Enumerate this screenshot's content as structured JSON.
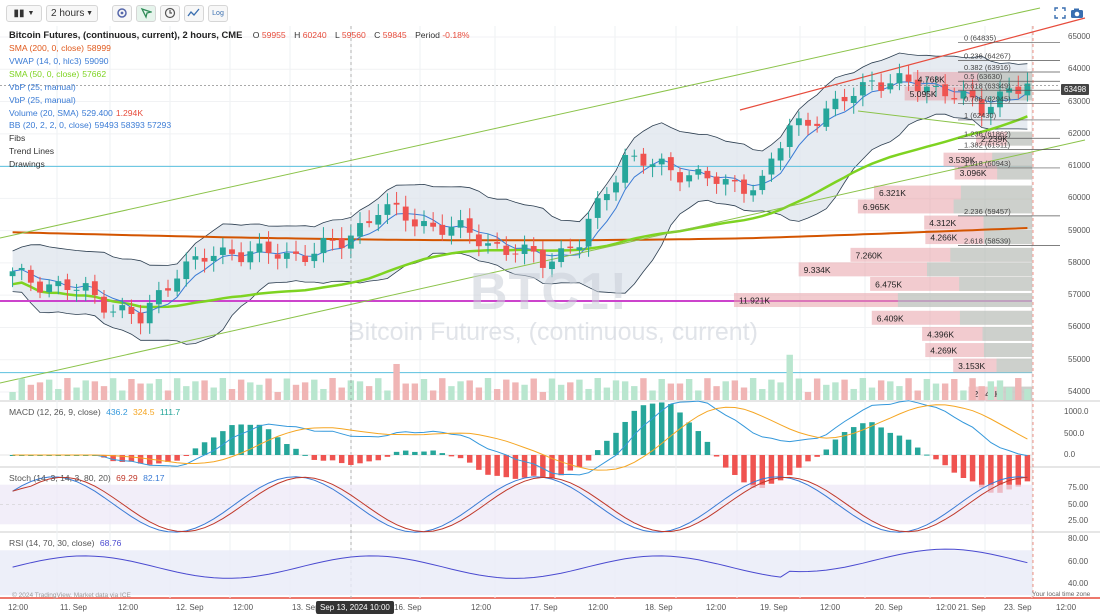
{
  "toolbar": {
    "chart_type_icon": "candles-icon",
    "interval": "2 hours",
    "settings_icon": "gear-icon",
    "icons": [
      "cursor-icon",
      "clock-icon",
      "indicators-icon",
      "log-icon"
    ],
    "log_label": "Log",
    "right_icons": [
      "fullscreen-icon",
      "camera-icon"
    ]
  },
  "legend": {
    "title": "Bitcoin Futures, (continuous, current), 2 hours, CME",
    "ohlc": {
      "o_label": "O",
      "o": "59955",
      "h_label": "H",
      "h": "60240",
      "l_label": "L",
      "l": "59560",
      "c_label": "C",
      "c": "59845",
      "period_label": "Period",
      "period": "-0.18%"
    },
    "rows": [
      {
        "name": "SMA (200, 0, close)",
        "value": "58999",
        "color": "#e0591c"
      },
      {
        "name": "VWAP (14, 0, hlc3)",
        "value": "59090",
        "color": "#3a7bd5"
      },
      {
        "name": "SMA (50, 0, close)",
        "value": "57662",
        "color": "#7ed321"
      },
      {
        "name": "VbP (25, manual)",
        "value": "",
        "color": "#3a7bd5"
      },
      {
        "name": "VbP (25, manual)",
        "value": "",
        "color": "#3a7bd5"
      },
      {
        "name": "Volume (20, SMA)",
        "value": "529.400",
        "value2": "1.294K",
        "color": "#3a7bd5",
        "value2_color": "#e74c3c"
      },
      {
        "name": "BB (20, 2, 2, 0, close)",
        "value": "59493 58393 57293",
        "color": "#3a7bd5"
      },
      {
        "name": "Fibs",
        "value": "",
        "color": "#333"
      },
      {
        "name": "Trend Lines",
        "value": "",
        "color": "#333"
      },
      {
        "name": "Drawings",
        "value": "",
        "color": "#333"
      }
    ]
  },
  "watermark": {
    "symbol": "BTC1!",
    "description": "Bitcoin Futures, (continuous, current)"
  },
  "macd_legend": {
    "name": "MACD (12, 26, 9, close)",
    "v1": "436.2",
    "v2": "324.5",
    "v3": "111.7"
  },
  "stoch_legend": {
    "name": "Stoch (14, 3, 14, 3, 80, 20)",
    "v1": "69.29",
    "v2": "82.17"
  },
  "rsi_legend": {
    "name": "RSI (14, 70, 30, close)",
    "v1": "68.76"
  },
  "price_axis": [
    "65000",
    "64000",
    "63000",
    "62000",
    "61000",
    "60000",
    "59000",
    "58000",
    "57000",
    "56000",
    "55000",
    "54000"
  ],
  "current_price": "63498",
  "macd_axis": [
    "1000.0",
    "500.0",
    "0.0"
  ],
  "stoch_axis": [
    "75.00",
    "50.00",
    "25.00"
  ],
  "rsi_axis": [
    "80.00",
    "60.00",
    "40.00"
  ],
  "time_axis": [
    "12:00",
    "11. Sep",
    "12:00",
    "12. Sep",
    "12:00",
    "13. Sep",
    "16. Sep",
    "12:00",
    "17. Sep",
    "12:00",
    "18. Sep",
    "12:00",
    "19. Sep",
    "12:00",
    "20. Sep",
    "12:00",
    "21. Sep",
    "23. Sep",
    "12:00"
  ],
  "crosshair_date": "Sep 13, 2024 10:00",
  "footer_note": "© 2024 TradingView. Market data via ICE",
  "tz_note": "Your local time zone",
  "fib_labels": [
    "0 (64835)",
    "0.236 (64267)",
    "0.382 (63916)",
    "0.5 (63630)",
    "0.618 (63349)",
    "0.786 (62945)",
    "1 (62430)",
    "1.236 (61862)",
    "1.382 (61511)",
    "1.618 (60943)",
    "2.236 (59457)",
    "2.618 (58539)"
  ],
  "vbp_labels": [
    "4.768K",
    "5.095K",
    "2.239K",
    "3.539K",
    "3.096K",
    "6.321K",
    "6.965K",
    "4.312K",
    "4.266K",
    "7.260K",
    "9.334K",
    "6.475K",
    "11.921K",
    "6.409K",
    "4.396K",
    "4.269K",
    "3.153K",
    "2.541K"
  ],
  "colors": {
    "up": "#26a69a",
    "down": "#ef5350",
    "sma200": "#d35400",
    "sma50": "#7ed321",
    "vwap": "#3a7bd5",
    "bb": "#2c3e50",
    "bbfill": "#dde4ec",
    "macd": "#3498db",
    "signal": "#f5a623",
    "stochk": "#3a7bd5",
    "stochd": "#c0392b",
    "rsi": "#4a4ad0",
    "magenta": "#cc44cc",
    "cyan": "#5bc0de"
  },
  "chart_data": {
    "type": "candlestick",
    "symbol": "BTC1!",
    "interval": "2h",
    "ylim": [
      53700,
      65700
    ],
    "x_range_labels": [
      "10 Sep 12:00",
      "23 Sep 12:00"
    ],
    "bars_approx": 112,
    "close_anchors": [
      [
        0,
        57600
      ],
      [
        8,
        57100
      ],
      [
        14,
        56200
      ],
      [
        18,
        57800
      ],
      [
        24,
        58400
      ],
      [
        30,
        58200
      ],
      [
        36,
        58600
      ],
      [
        40,
        59700
      ],
      [
        44,
        59300
      ],
      [
        50,
        58900
      ],
      [
        54,
        58400
      ],
      [
        58,
        58100
      ],
      [
        62,
        58600
      ],
      [
        65,
        60300
      ],
      [
        67,
        61300
      ],
      [
        70,
        61000
      ],
      [
        74,
        60800
      ],
      [
        78,
        60400
      ],
      [
        82,
        60500
      ],
      [
        85,
        62200
      ],
      [
        90,
        62800
      ],
      [
        94,
        63700
      ],
      [
        98,
        63500
      ],
      [
        102,
        63400
      ],
      [
        106,
        62700
      ],
      [
        109,
        63500
      ],
      [
        111,
        63400
      ]
    ],
    "indicators": {
      "sma200_last": 58999,
      "vwap_last": 59090,
      "sma50_last": 57662,
      "bb": {
        "upper": 59493,
        "mid": 58393,
        "lower": 57293
      },
      "macd": {
        "macd": 436.2,
        "signal": 324.5,
        "hist": 111.7
      },
      "stoch": {
        "k": 69.29,
        "d": 82.17
      },
      "rsi": 68.76,
      "volume": {
        "last": 1294,
        "sma20": 529.4
      }
    },
    "fibonacci": [
      {
        "level": 0,
        "price": 64835
      },
      {
        "level": 0.236,
        "price": 64267
      },
      {
        "level": 0.382,
        "price": 63916
      },
      {
        "level": 0.5,
        "price": 63630
      },
      {
        "level": 0.618,
        "price": 63349
      },
      {
        "level": 0.786,
        "price": 62945
      },
      {
        "level": 1,
        "price": 62430
      },
      {
        "level": 1.236,
        "price": 61862
      },
      {
        "level": 1.382,
        "price": 61511
      },
      {
        "level": 1.618,
        "price": 60943
      },
      {
        "level": 2.236,
        "price": 59457
      },
      {
        "level": 2.618,
        "price": 58539
      }
    ],
    "horizontal_lines": [
      {
        "price": 60990,
        "color": "cyan"
      },
      {
        "price": 56820,
        "color": "magenta"
      },
      {
        "price": 54600,
        "color": "cyan"
      }
    ],
    "volume_by_price": [
      {
        "price": 63700,
        "volume": "4.768K"
      },
      {
        "price": 63250,
        "volume": "5.095K"
      },
      {
        "price": 61850,
        "volume": "2.239K"
      },
      {
        "price": 61200,
        "volume": "3.539K"
      },
      {
        "price": 60800,
        "volume": "3.096K"
      },
      {
        "price": 60180,
        "volume": "6.321K"
      },
      {
        "price": 59750,
        "volume": "6.965K"
      },
      {
        "price": 59250,
        "volume": "4.312K"
      },
      {
        "price": 58800,
        "volume": "4.266K"
      },
      {
        "price": 58250,
        "volume": "7.260K"
      },
      {
        "price": 57800,
        "volume": "9.334K"
      },
      {
        "price": 57350,
        "volume": "6.475K"
      },
      {
        "price": 56850,
        "volume": "11.921K"
      },
      {
        "price": 56300,
        "volume": "6.409K"
      },
      {
        "price": 55800,
        "volume": "4.396K"
      },
      {
        "price": 55300,
        "volume": "4.269K"
      },
      {
        "price": 54820,
        "volume": "3.153K"
      },
      {
        "price": 53950,
        "volume": "2.541K"
      }
    ]
  }
}
